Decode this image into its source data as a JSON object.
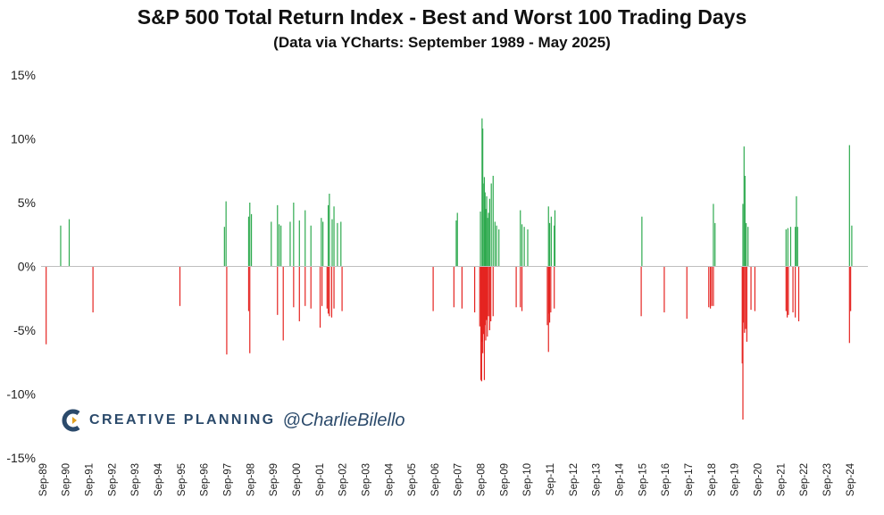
{
  "chart_data": {
    "type": "bar",
    "title": "S&P 500 Total Return Index - Best and Worst 100 Trading Days",
    "subtitle": "(Data via YCharts: September 1989 - May 2025)",
    "xlabel": "",
    "ylabel": "",
    "ylim": [
      -15,
      15
    ],
    "yticks": [
      15,
      10,
      5,
      0,
      -5,
      -10,
      -15
    ],
    "ytick_labels": [
      "15%",
      "10%",
      "5%",
      "0%",
      "-5%",
      "-10%",
      "-15%"
    ],
    "xlim": [
      1989.6,
      2025.45
    ],
    "xticks": [
      1989.67,
      1990.67,
      1991.67,
      1992.67,
      1993.67,
      1994.67,
      1995.67,
      1996.67,
      1997.67,
      1998.67,
      1999.67,
      2000.67,
      2001.67,
      2002.67,
      2003.67,
      2004.67,
      2005.67,
      2006.67,
      2007.67,
      2008.67,
      2009.67,
      2010.67,
      2011.67,
      2012.67,
      2013.67,
      2014.67,
      2015.67,
      2016.67,
      2017.67,
      2018.67,
      2019.67,
      2020.67,
      2021.67,
      2022.67,
      2023.67,
      2024.67
    ],
    "xtick_labels": [
      "Sep-89",
      "Sep-90",
      "Sep-91",
      "Sep-92",
      "Sep-93",
      "Sep-94",
      "Sep-95",
      "Sep-96",
      "Sep-97",
      "Sep-98",
      "Sep-99",
      "Sep-00",
      "Sep-01",
      "Sep-02",
      "Sep-03",
      "Sep-04",
      "Sep-05",
      "Sep-06",
      "Sep-07",
      "Sep-08",
      "Sep-09",
      "Sep-10",
      "Sep-11",
      "Sep-12",
      "Sep-13",
      "Sep-14",
      "Sep-15",
      "Sep-16",
      "Sep-17",
      "Sep-18",
      "Sep-19",
      "Sep-20",
      "Sep-21",
      "Sep-22",
      "Sep-23",
      "Sep-24"
    ],
    "colors": {
      "best": "#2eaa4f",
      "worst": "#e52421",
      "axis": "#bfbfbf"
    },
    "grid": false,
    "legend": "none",
    "series": [
      {
        "x": [
          1990.45,
          1990.82,
          1997.55,
          1997.62,
          1998.6,
          1998.65,
          1998.72,
          1999.58,
          1999.85,
          1999.92,
          2000.0,
          2000.4,
          2000.55,
          2000.8,
          2001.05,
          2001.3,
          2001.75,
          2001.82,
          2002.05,
          2002.1,
          2002.22,
          2002.3,
          2002.45,
          2002.6,
          2007.6,
          2007.65,
          2008.65,
          2008.72,
          2008.75,
          2008.8,
          2008.82,
          2008.85,
          2008.88,
          2008.92,
          2008.97,
          2009.0,
          2009.05,
          2009.12,
          2009.2,
          2009.28,
          2009.35,
          2009.45,
          2010.38,
          2010.45,
          2010.55,
          2010.7,
          2011.6,
          2011.65,
          2011.72,
          2011.85,
          2011.88,
          2015.65,
          2018.75,
          2018.82,
          2020.03,
          2020.08,
          2020.12,
          2020.17,
          2020.25,
          2021.9,
          2021.98,
          2022.1,
          2022.3,
          2022.35,
          2022.4,
          2024.65,
          2024.75
        ],
        "values": [
          3.2,
          3.7,
          3.1,
          5.1,
          3.9,
          5.0,
          4.1,
          3.5,
          4.8,
          3.3,
          3.2,
          3.5,
          5.0,
          3.6,
          4.4,
          3.2,
          3.8,
          3.5,
          4.8,
          5.7,
          3.7,
          4.7,
          3.4,
          3.5,
          3.6,
          4.2,
          4.3,
          11.6,
          10.8,
          6.5,
          7.0,
          5.8,
          4.5,
          5.5,
          3.8,
          4.2,
          5.3,
          6.5,
          7.1,
          3.5,
          3.2,
          2.9,
          4.4,
          3.3,
          3.1,
          2.9,
          4.7,
          3.4,
          3.9,
          3.2,
          4.4,
          3.9,
          4.9,
          3.4,
          4.9,
          9.4,
          7.1,
          3.4,
          3.1,
          2.9,
          3.0,
          3.1,
          3.1,
          5.5,
          3.1,
          9.5,
          3.2
        ]
      },
      {
        "x": [
          1989.82,
          1991.85,
          1995.62,
          1997.65,
          1998.6,
          1998.65,
          1999.85,
          2000.1,
          2000.55,
          2000.8,
          2001.05,
          2001.3,
          2001.7,
          2001.78,
          2002.0,
          2002.05,
          2002.1,
          2002.2,
          2002.3,
          2002.65,
          2006.6,
          2007.5,
          2007.85,
          2008.4,
          2008.62,
          2008.67,
          2008.7,
          2008.72,
          2008.75,
          2008.78,
          2008.82,
          2008.85,
          2008.88,
          2008.92,
          2008.95,
          2009.0,
          2009.05,
          2009.1,
          2009.2,
          2010.2,
          2010.38,
          2010.45,
          2011.55,
          2011.6,
          2011.62,
          2011.65,
          2011.7,
          2011.85,
          2015.62,
          2016.62,
          2017.6,
          2018.55,
          2018.62,
          2018.68,
          2018.75,
          2020.0,
          2020.03,
          2020.05,
          2020.1,
          2020.15,
          2020.2,
          2020.38,
          2020.55,
          2021.9,
          2021.95,
          2022.0,
          2022.2,
          2022.3,
          2022.45,
          2024.65,
          2024.7
        ],
        "values": [
          -6.1,
          -3.6,
          -3.1,
          -6.9,
          -3.5,
          -6.8,
          -3.8,
          -5.8,
          -3.2,
          -4.3,
          -3.1,
          -3.3,
          -4.8,
          -3.1,
          -3.3,
          -3.7,
          -3.9,
          -4.0,
          -3.3,
          -3.5,
          -3.5,
          -3.2,
          -3.3,
          -3.6,
          -4.7,
          -8.9,
          -9.0,
          -5.9,
          -6.8,
          -5.3,
          -8.9,
          -4.6,
          -5.8,
          -4.2,
          -5.5,
          -3.9,
          -5.0,
          -4.3,
          -3.9,
          -3.2,
          -3.2,
          -3.5,
          -4.6,
          -6.7,
          -3.7,
          -4.4,
          -3.6,
          -3.3,
          -3.9,
          -3.6,
          -4.1,
          -3.2,
          -3.3,
          -3.1,
          -3.1,
          -7.6,
          -12.0,
          -4.4,
          -5.2,
          -4.9,
          -5.9,
          -3.4,
          -3.5,
          -3.5,
          -4.0,
          -3.8,
          -3.6,
          -4.0,
          -4.3,
          -6.0,
          -3.5
        ]
      }
    ]
  },
  "watermark": {
    "brand": "CREATIVE PLANNING",
    "handle": "@CharlieBilello"
  }
}
